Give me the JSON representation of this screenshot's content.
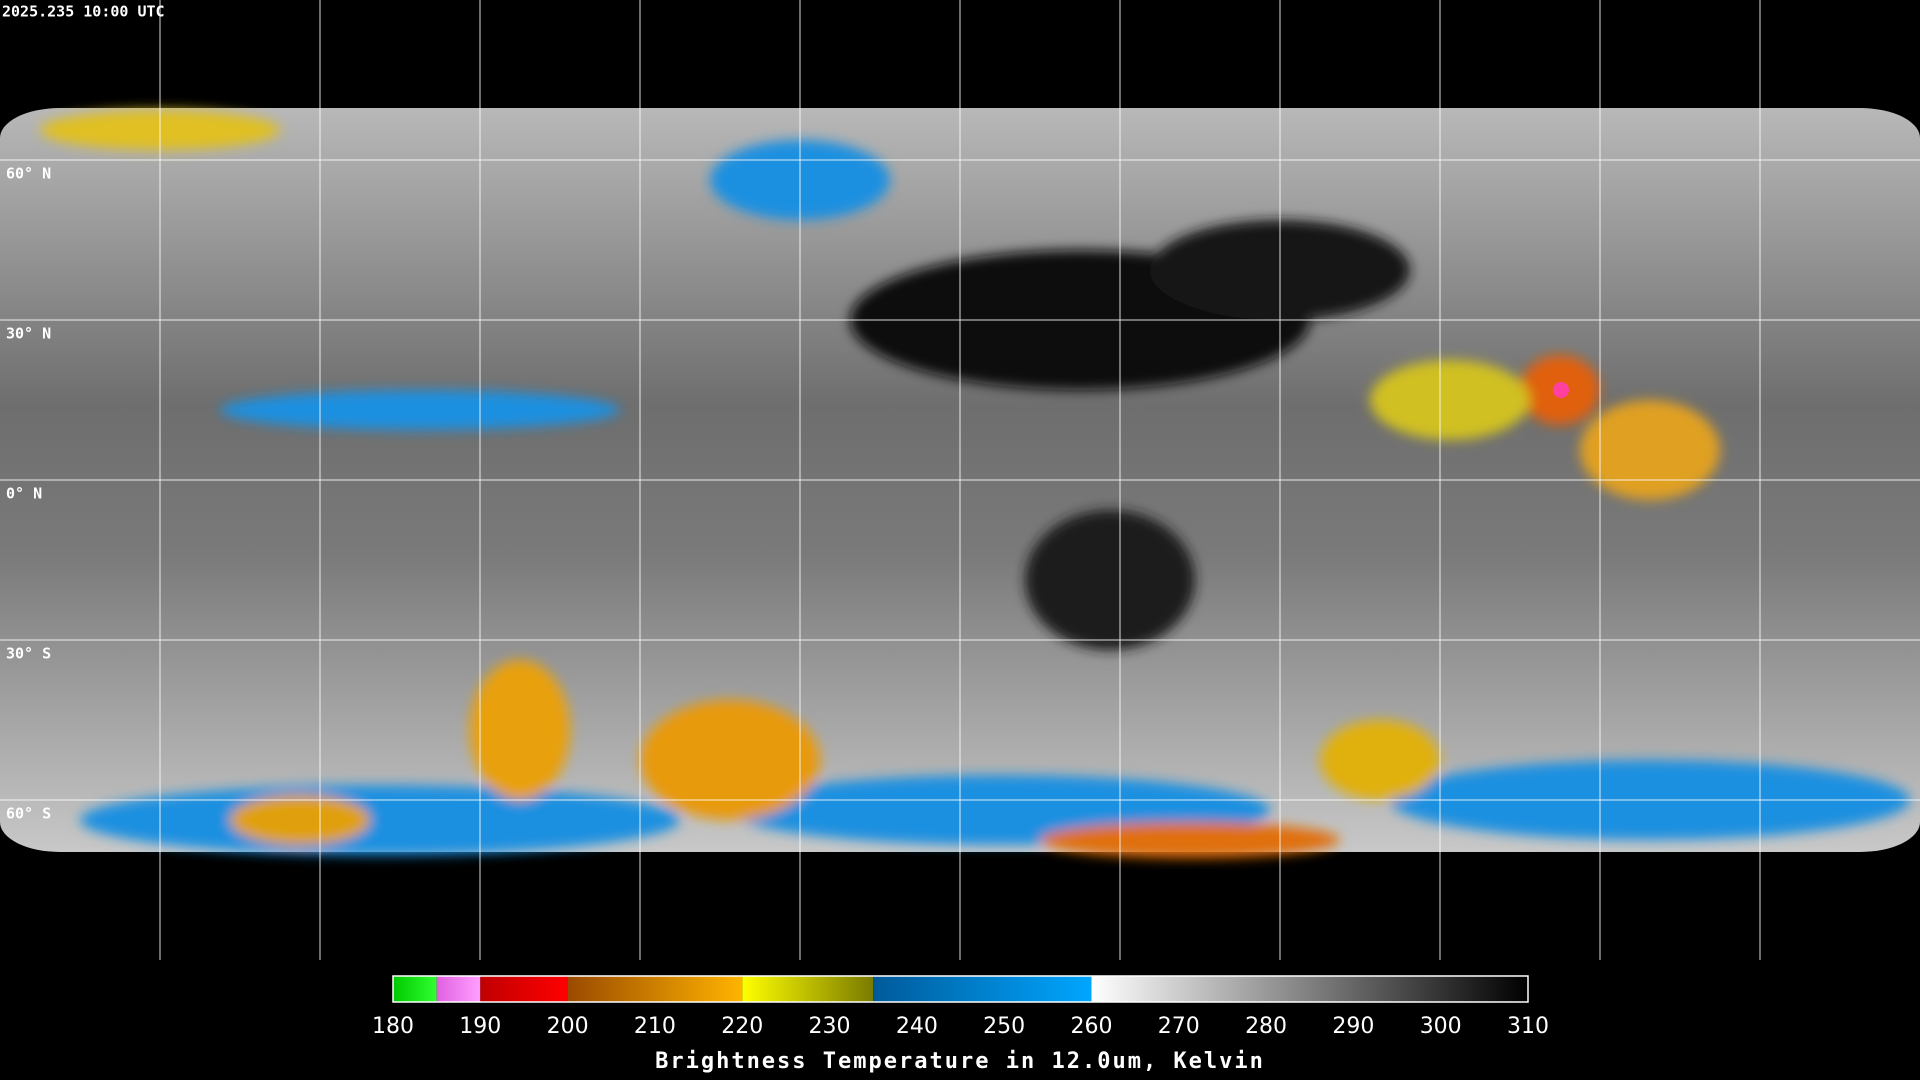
{
  "timestamp": "2025.235 10:00 UTC",
  "lat_grid": [
    {
      "value": 60,
      "label": "60° N"
    },
    {
      "value": 30,
      "label": "30° N"
    },
    {
      "value": 0,
      "label": "0° N"
    },
    {
      "value": -30,
      "label": "30° S"
    },
    {
      "value": -60,
      "label": "60° S"
    }
  ],
  "colorbar": {
    "title": "Brightness Temperature in 12.0um, Kelvin",
    "range": [
      180,
      310
    ],
    "ticks": [
      180,
      190,
      200,
      210,
      220,
      230,
      240,
      250,
      260,
      270,
      280,
      290,
      300,
      310
    ],
    "segments": [
      {
        "range": [
          180,
          185
        ],
        "colors": [
          "#00c800",
          "#30ff30"
        ]
      },
      {
        "range": [
          185,
          190
        ],
        "colors": [
          "#e060e0",
          "#ffa0ff"
        ]
      },
      {
        "range": [
          190,
          200
        ],
        "colors": [
          "#c00000",
          "#ff0000"
        ]
      },
      {
        "range": [
          200,
          220
        ],
        "colors": [
          "#9a4a00",
          "#ffb400"
        ]
      },
      {
        "range": [
          220,
          235
        ],
        "colors": [
          "#ffff00",
          "#7a7a00"
        ]
      },
      {
        "range": [
          235,
          260
        ],
        "colors": [
          "#005a9a",
          "#00a6ff"
        ]
      },
      {
        "range": [
          260,
          310
        ],
        "colors": [
          "#ffffff",
          "#000000"
        ]
      }
    ]
  }
}
